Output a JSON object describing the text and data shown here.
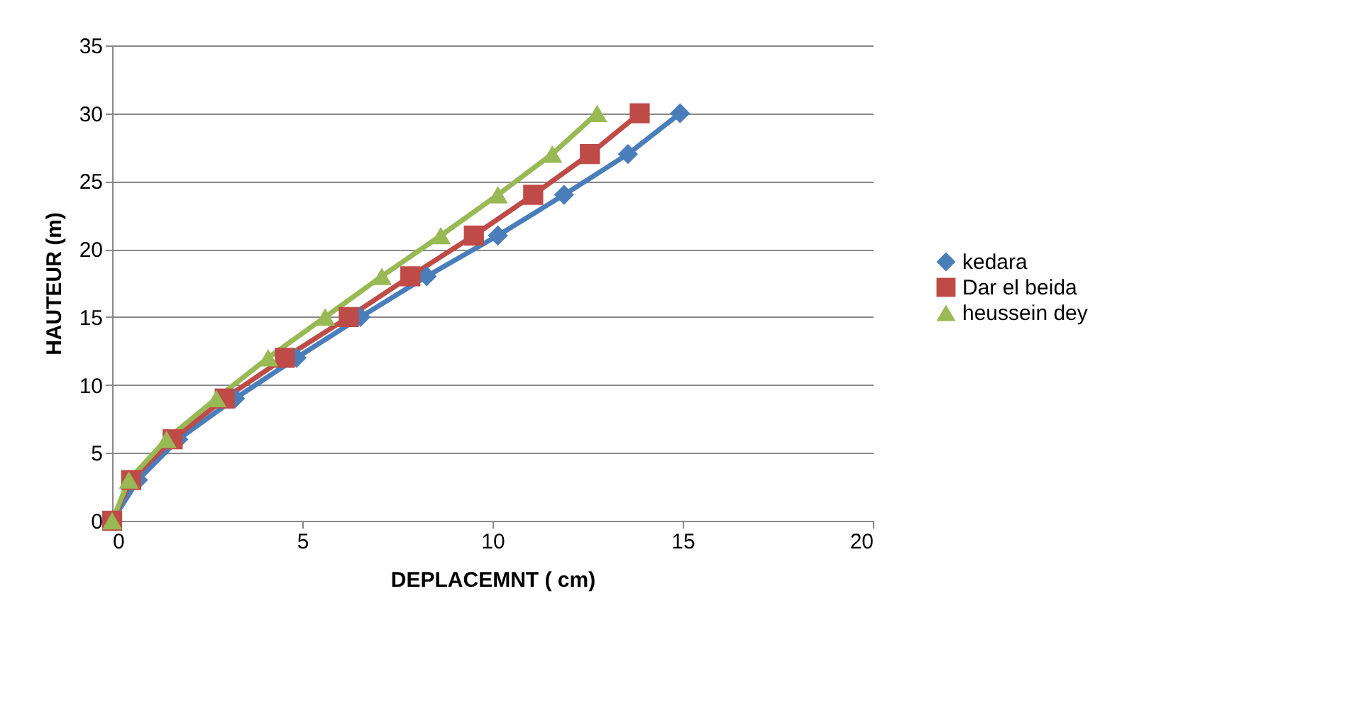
{
  "chart_data": {
    "type": "line",
    "xlabel": "DEPLACEMNT ( cm)",
    "ylabel": "HAUTEUR (m)",
    "xlim": [
      0,
      20
    ],
    "xticks": [
      0,
      5,
      10,
      15,
      20
    ],
    "ylim": [
      0,
      35
    ],
    "yticks": [
      0,
      5,
      10,
      15,
      20,
      25,
      30,
      35
    ],
    "grid": "y",
    "legend": "right",
    "line_style": "solid",
    "series": [
      {
        "name": "kedara",
        "color": "#4a7ebb",
        "marker": "diamond",
        "x": [
          0,
          0.68,
          1.74,
          3.23,
          4.85,
          6.53,
          8.27,
          10.14,
          11.88,
          13.56,
          14.93
        ],
        "values": [
          0,
          3,
          6,
          9,
          12,
          15,
          18,
          21,
          24,
          27,
          30
        ]
      },
      {
        "name": "Dar el beida",
        "color": "#be4b48",
        "marker": "square",
        "x": [
          0,
          0.5,
          1.59,
          2.96,
          4.54,
          6.22,
          7.84,
          9.51,
          11.07,
          12.56,
          13.87
        ],
        "values": [
          0,
          3,
          6,
          9,
          12,
          15,
          18,
          21,
          24,
          27,
          30
        ]
      },
      {
        "name": "heussein dey",
        "color": "#98b954",
        "marker": "triangle",
        "x": [
          0,
          0.44,
          1.43,
          2.74,
          4.1,
          5.6,
          7.09,
          8.64,
          10.14,
          11.57,
          12.75
        ],
        "values": [
          0,
          3,
          6,
          9,
          12,
          15,
          18,
          21,
          24,
          27,
          30
        ]
      }
    ]
  }
}
